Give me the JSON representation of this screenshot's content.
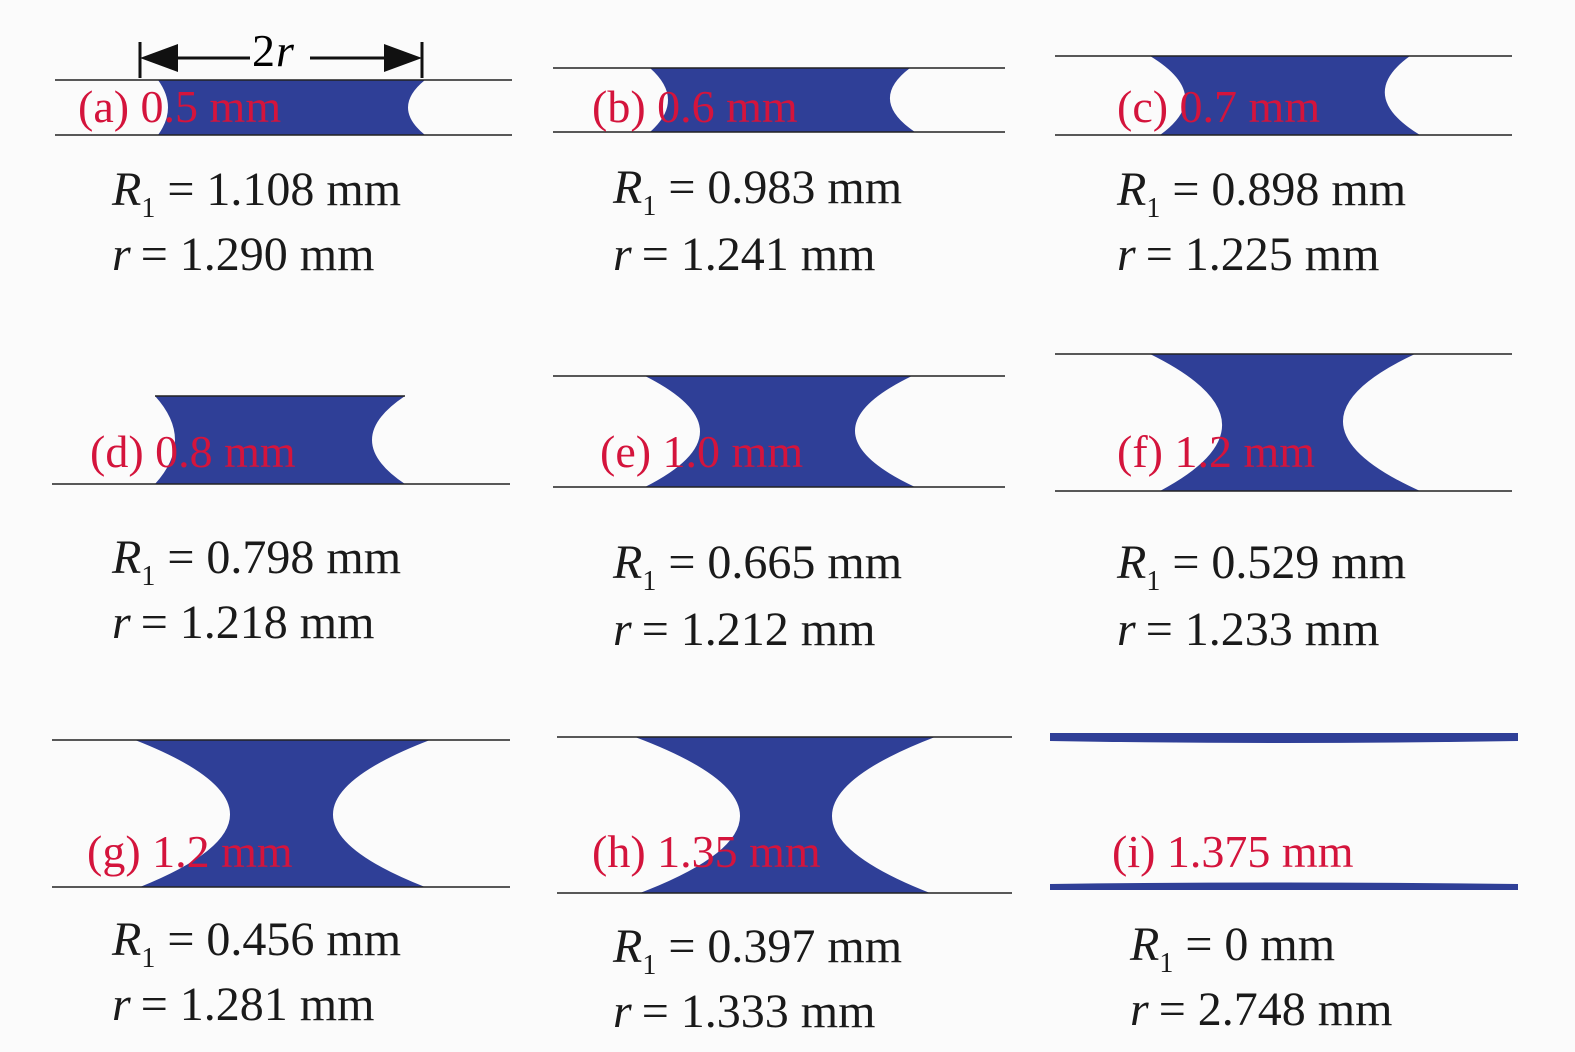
{
  "annotation": {
    "number": "2",
    "symbol": "r"
  },
  "panels": [
    {
      "label": "(a) 0.5 mm",
      "r1": {
        "symbol": "R",
        "subscript": "1",
        "text": "= 1.108 mm"
      },
      "r": {
        "symbol": "r",
        "text": "= 1.290 mm"
      }
    },
    {
      "label": "(b) 0.6 mm",
      "r1": {
        "symbol": "R",
        "subscript": "1",
        "text": "= 0.983 mm"
      },
      "r": {
        "symbol": "r",
        "text": "= 1.241 mm"
      }
    },
    {
      "label": "(c) 0.7 mm",
      "r1": {
        "symbol": "R",
        "subscript": "1",
        "text": "= 0.898 mm"
      },
      "r": {
        "symbol": "r",
        "text": "= 1.225 mm"
      }
    },
    {
      "label": "(d) 0.8 mm",
      "r1": {
        "symbol": "R",
        "subscript": "1",
        "text": "= 0.798 mm"
      },
      "r": {
        "symbol": "r",
        "text": "= 1.218 mm"
      }
    },
    {
      "label": "(e) 1.0 mm",
      "r1": {
        "symbol": "R",
        "subscript": "1",
        "text": "= 0.665 mm"
      },
      "r": {
        "symbol": "r",
        "text": "= 1.212 mm"
      }
    },
    {
      "label": "(f) 1.2 mm",
      "r1": {
        "symbol": "R",
        "subscript": "1",
        "text": "= 0.529 mm"
      },
      "r": {
        "symbol": "r",
        "text": "= 1.233 mm"
      }
    },
    {
      "label": "(g) 1.2 mm",
      "r1": {
        "symbol": "R",
        "subscript": "1",
        "text": "= 0.456 mm"
      },
      "r": {
        "symbol": "r",
        "text": "= 1.281 mm"
      }
    },
    {
      "label": "(h) 1.35 mm",
      "r1": {
        "symbol": "R",
        "subscript": "1",
        "text": "= 0.397 mm"
      },
      "r": {
        "symbol": "r",
        "text": "= 1.333 mm"
      }
    },
    {
      "label": "(i) 1.375 mm",
      "r1": {
        "symbol": "R",
        "subscript": "1",
        "text": "= 0 mm"
      },
      "r": {
        "symbol": "r",
        "text": "= 2.748 mm"
      }
    }
  ]
}
